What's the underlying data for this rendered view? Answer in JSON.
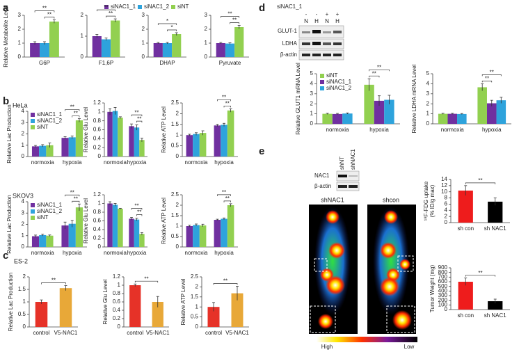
{
  "panel_labels": [
    "a",
    "b",
    "c",
    "d",
    "e"
  ],
  "blot_d": {
    "header": "siNAC1_1",
    "signs": [
      "-",
      "-",
      "+",
      "+"
    ],
    "conditions": [
      "N",
      "H",
      "N",
      "H"
    ],
    "rows": [
      "GLUT-1",
      "LDHA",
      "β-actin"
    ]
  },
  "blot_e": {
    "lanes": [
      "shNT",
      "shNAC1"
    ],
    "rows": [
      "NAC1",
      "β-actin"
    ]
  },
  "pet": {
    "labels": [
      "shNAC1",
      "shcon"
    ],
    "scale": [
      "High",
      "Low"
    ]
  },
  "chart_data": [
    {
      "type": "bar",
      "y_label": "Relative Metabolite Level",
      "categories": [
        "G6P"
      ],
      "legend": "top",
      "series": [
        {
          "name": "siNAC1_1",
          "color": "#7030a0",
          "values": [
            1.0
          ],
          "errors": [
            0.1
          ]
        },
        {
          "name": "siNAC1_2",
          "color": "#2ea3dc",
          "values": [
            1.0
          ],
          "errors": [
            0.1
          ]
        },
        {
          "name": "siNT",
          "color": "#92d050",
          "values": [
            2.55
          ],
          "errors": [
            0.12
          ]
        }
      ],
      "ylim": [
        0,
        3
      ],
      "yticks": [
        0,
        1,
        2,
        3
      ],
      "significance": [
        "**",
        "**"
      ]
    },
    {
      "type": "bar",
      "categories": [
        "F1,6P"
      ],
      "series": [
        {
          "color": "#7030a0",
          "values": [
            1.0
          ],
          "errors": [
            0.08
          ]
        },
        {
          "color": "#2ea3dc",
          "values": [
            0.85
          ],
          "errors": [
            0.06
          ]
        },
        {
          "color": "#92d050",
          "values": [
            1.75
          ],
          "errors": [
            0.08
          ]
        }
      ],
      "ylim": [
        0,
        2
      ],
      "yticks": [
        0,
        1,
        2
      ],
      "significance": [
        "**",
        "**"
      ]
    },
    {
      "type": "bar",
      "categories": [
        "DHAP"
      ],
      "series": [
        {
          "color": "#7030a0",
          "values": [
            1.0
          ],
          "errors": [
            0.05
          ]
        },
        {
          "color": "#2ea3dc",
          "values": [
            1.0
          ],
          "errors": [
            0.05
          ]
        },
        {
          "color": "#92d050",
          "values": [
            1.65
          ],
          "errors": [
            0.1
          ]
        }
      ],
      "ylim": [
        0,
        3
      ],
      "yticks": [
        0,
        1,
        2,
        3
      ],
      "significance": [
        "*",
        "*"
      ]
    },
    {
      "type": "bar",
      "categories": [
        "Pyruvate"
      ],
      "series": [
        {
          "color": "#7030a0",
          "values": [
            1.0
          ],
          "errors": [
            0.05
          ]
        },
        {
          "color": "#2ea3dc",
          "values": [
            0.97
          ],
          "errors": [
            0.05
          ]
        },
        {
          "color": "#92d050",
          "values": [
            2.15
          ],
          "errors": [
            0.12
          ]
        }
      ],
      "ylim": [
        0,
        3
      ],
      "yticks": [
        0,
        1,
        2,
        3
      ],
      "significance": [
        "**",
        "**"
      ]
    },
    {
      "type": "bar",
      "subtitle": "HeLa",
      "y_label": "Relative Lac Production",
      "categories": [
        "normoxia",
        "hypoxia"
      ],
      "legend": "upper left",
      "series": [
        {
          "name": "siNAC1_1",
          "color": "#7030a0",
          "values": [
            0.9,
            1.65
          ],
          "errors": [
            0.08,
            0.1
          ]
        },
        {
          "name": "siNAC1_2",
          "color": "#2ea3dc",
          "values": [
            0.95,
            1.7
          ],
          "errors": [
            0.1,
            0.12
          ]
        },
        {
          "name": "siNT",
          "color": "#92d050",
          "values": [
            1.0,
            3.2
          ],
          "errors": [
            0.2,
            0.15
          ]
        }
      ],
      "ylim": [
        0,
        4
      ],
      "yticks": [
        0,
        1,
        2,
        3,
        4
      ],
      "significance": [
        "**",
        "**"
      ]
    },
    {
      "type": "bar",
      "y_label": "Relative Glu Level",
      "categories": [
        "normoxia",
        "hypoxia"
      ],
      "series": [
        {
          "color": "#7030a0",
          "values": [
            1.0,
            0.68
          ],
          "errors": [
            0.07,
            0.05
          ]
        },
        {
          "color": "#2ea3dc",
          "values": [
            1.02,
            0.65
          ],
          "errors": [
            0.08,
            0.06
          ]
        },
        {
          "color": "#92d050",
          "values": [
            0.87,
            0.37
          ],
          "errors": [
            0.02,
            0.04
          ]
        }
      ],
      "ylim": [
        0,
        1.2
      ],
      "yticks": [
        0,
        0.2,
        0.4,
        0.6,
        0.8,
        1,
        1.2
      ],
      "significance": [
        "**",
        "**"
      ]
    },
    {
      "type": "bar",
      "y_label": "Relative ATP Level",
      "categories": [
        "normoxia",
        "hypoxia"
      ],
      "series": [
        {
          "color": "#7030a0",
          "values": [
            1.0,
            1.45
          ],
          "errors": [
            0.04,
            0.05
          ]
        },
        {
          "color": "#2ea3dc",
          "values": [
            1.05,
            1.48
          ],
          "errors": [
            0.06,
            0.07
          ]
        },
        {
          "color": "#92d050",
          "values": [
            1.1,
            2.15
          ],
          "errors": [
            0.1,
            0.08
          ]
        }
      ],
      "ylim": [
        0,
        2.5
      ],
      "yticks": [
        0,
        0.5,
        1,
        1.5,
        2,
        2.5
      ],
      "significance": [
        "**",
        "**"
      ]
    },
    {
      "type": "bar",
      "subtitle": "SKOV3",
      "y_label": "Relative Lac Production",
      "categories": [
        "normoxia",
        "hypoxia"
      ],
      "legend": "upper left",
      "series": [
        {
          "name": "siNAC1_1",
          "color": "#7030a0",
          "values": [
            0.95,
            1.9
          ],
          "errors": [
            0.1,
            0.3
          ]
        },
        {
          "name": "siNAC1_2",
          "color": "#2ea3dc",
          "values": [
            1.05,
            2.05
          ],
          "errors": [
            0.08,
            0.3
          ]
        },
        {
          "name": "siNT",
          "color": "#92d050",
          "values": [
            1.0,
            3.5
          ],
          "errors": [
            0.06,
            0.3
          ]
        }
      ],
      "ylim": [
        0,
        4
      ],
      "yticks": [
        0,
        1,
        2,
        3,
        4
      ],
      "significance": [
        "**",
        "**"
      ]
    },
    {
      "type": "bar",
      "y_label": "Relative Glu Level",
      "categories": [
        "normoxia",
        "hypoxia"
      ],
      "series": [
        {
          "color": "#7030a0",
          "values": [
            1.0,
            0.65
          ],
          "errors": [
            0.04,
            0.03
          ]
        },
        {
          "color": "#2ea3dc",
          "values": [
            0.97,
            0.63
          ],
          "errors": [
            0.03,
            0.03
          ]
        },
        {
          "color": "#92d050",
          "values": [
            0.88,
            0.3
          ],
          "errors": [
            0.01,
            0.03
          ]
        }
      ],
      "ylim": [
        0,
        1.2
      ],
      "yticks": [
        0,
        0.2,
        0.4,
        0.6,
        0.8,
        1,
        1.2
      ],
      "significance": [
        "**",
        "**"
      ]
    },
    {
      "type": "bar",
      "y_label": "Relative ATP Level",
      "categories": [
        "normoxia",
        "hypoxia"
      ],
      "series": [
        {
          "color": "#7030a0",
          "values": [
            1.0,
            1.3
          ],
          "errors": [
            0.04,
            0.03
          ]
        },
        {
          "color": "#2ea3dc",
          "values": [
            1.05,
            1.35
          ],
          "errors": [
            0.05,
            0.04
          ]
        },
        {
          "color": "#92d050",
          "values": [
            1.03,
            2.0
          ],
          "errors": [
            0.06,
            0.07
          ]
        }
      ],
      "ylim": [
        0,
        2.5
      ],
      "yticks": [
        0,
        0.5,
        1,
        1.5,
        2,
        2.5
      ],
      "significance": [
        "**",
        "**"
      ]
    },
    {
      "type": "bar",
      "subtitle": "ES-2",
      "y_label": "Relative Lac Production",
      "categories": [
        "control",
        "V5-NAC1"
      ],
      "values": [
        1.0,
        1.55
      ],
      "errors": [
        0.08,
        0.1
      ],
      "colors": [
        "#e63228",
        "#e8a838"
      ],
      "ylim": [
        0,
        2
      ],
      "yticks": [
        0,
        0.5,
        1,
        1.5,
        2
      ],
      "significance": [
        "**"
      ]
    },
    {
      "type": "bar",
      "y_label": "Relative Glu Level",
      "categories": [
        "control",
        "V5-NAC1"
      ],
      "values": [
        1.0,
        0.6
      ],
      "errors": [
        0.03,
        0.13
      ],
      "colors": [
        "#e63228",
        "#e8a838"
      ],
      "ylim": [
        0,
        1.2
      ],
      "yticks": [
        0,
        0.2,
        0.4,
        0.6,
        0.8,
        1,
        1.2
      ],
      "significance": [
        "**"
      ]
    },
    {
      "type": "bar",
      "y_label": "Relative ATP Level",
      "categories": [
        "control",
        "V5-NAC1"
      ],
      "values": [
        1.0,
        1.68
      ],
      "errors": [
        0.22,
        0.35
      ],
      "colors": [
        "#e63228",
        "#e8a838"
      ],
      "ylim": [
        0,
        2.5
      ],
      "yticks": [
        0,
        0.5,
        1,
        1.5,
        2,
        2.5
      ],
      "significance": [
        "**"
      ]
    },
    {
      "type": "bar",
      "y_label": "Relative GLUT1 mRNA Level",
      "categories": [
        "normoxia",
        "hypoxia"
      ],
      "legend": "upper left",
      "series": [
        {
          "name": "siNT",
          "color": "#92d050",
          "values": [
            1.0,
            3.9
          ],
          "errors": [
            0.05,
            0.6
          ]
        },
        {
          "name": "siNAC1_1",
          "color": "#7030a0",
          "values": [
            0.98,
            2.3
          ],
          "errors": [
            0.06,
            0.5
          ]
        },
        {
          "name": "siNAC1_2",
          "color": "#2ea3dc",
          "values": [
            1.03,
            2.4
          ],
          "errors": [
            0.06,
            0.45
          ]
        }
      ],
      "ylim": [
        0,
        5
      ],
      "yticks": [
        0,
        1,
        2,
        3,
        4,
        5
      ],
      "significance": [
        "**",
        "**"
      ]
    },
    {
      "type": "bar",
      "y_label": "Relative LDHA mRNA Level",
      "categories": [
        "normoxia",
        "hypoxia"
      ],
      "series": [
        {
          "color": "#92d050",
          "values": [
            1.0,
            3.65
          ],
          "errors": [
            0.05,
            0.35
          ]
        },
        {
          "color": "#7030a0",
          "values": [
            1.0,
            2.05
          ],
          "errors": [
            0.05,
            0.3
          ]
        },
        {
          "color": "#2ea3dc",
          "values": [
            0.98,
            2.35
          ],
          "errors": [
            0.05,
            0.3
          ]
        }
      ],
      "ylim": [
        0,
        5
      ],
      "yticks": [
        0,
        1,
        2,
        3,
        4,
        5
      ],
      "significance": [
        "**",
        "**"
      ]
    },
    {
      "type": "bar",
      "y_label": [
        "¹⁸F-FDG uptake",
        "(% ID/g max)"
      ],
      "categories": [
        "sh con",
        "sh NAC1"
      ],
      "values": [
        10.4,
        6.8
      ],
      "errors": [
        1.6,
        1.2
      ],
      "colors": [
        "#ee1c1c",
        "#000000"
      ],
      "ylim": [
        0,
        14
      ],
      "yticks": [
        0,
        2,
        4,
        6,
        8,
        10,
        12,
        14
      ],
      "significance": [
        "**"
      ]
    },
    {
      "type": "bar",
      "y_label": "Tumor Weight (mg)",
      "categories": [
        "sh con",
        "sh NAC1"
      ],
      "values": [
        600,
        180
      ],
      "errors": [
        80,
        45
      ],
      "colors": [
        "#ee1c1c",
        "#000000"
      ],
      "ylim": [
        0,
        900
      ],
      "yticks": [
        0,
        100,
        200,
        300,
        400,
        500,
        600,
        700,
        800,
        900
      ],
      "significance": [
        "**"
      ]
    }
  ]
}
